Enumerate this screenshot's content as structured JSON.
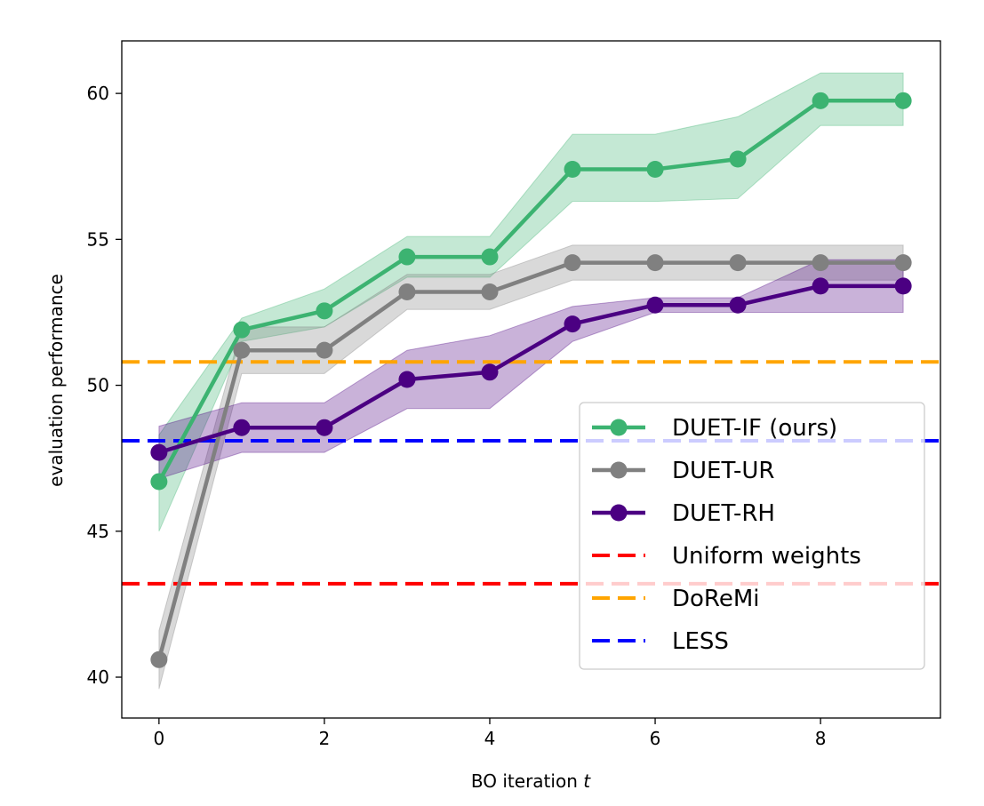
{
  "chart_data": {
    "type": "line",
    "title": "",
    "xlabel": "BO iteration",
    "xlabel_var": "t",
    "ylabel": "evaluation performance",
    "xlim": [
      -0.45,
      9.45
    ],
    "ylim": [
      38.6,
      61.8
    ],
    "xticks": [
      0,
      2,
      4,
      6,
      8
    ],
    "yticks": [
      40,
      45,
      50,
      55,
      60
    ],
    "grid": false,
    "legend_location": "lower-right",
    "x": [
      0,
      1,
      2,
      3,
      4,
      5,
      6,
      7,
      8,
      9
    ],
    "series": [
      {
        "name": "DUET-IF (ours)",
        "color": "#3cb371",
        "values": [
          46.7,
          51.9,
          52.55,
          54.4,
          54.4,
          57.4,
          57.4,
          57.75,
          59.75,
          59.75
        ],
        "band_low": [
          45.0,
          51.5,
          52.0,
          53.7,
          53.7,
          56.3,
          56.3,
          56.4,
          58.9,
          58.9
        ],
        "band_high": [
          48.3,
          52.3,
          53.3,
          55.1,
          55.1,
          58.6,
          58.6,
          59.2,
          60.7,
          60.7
        ]
      },
      {
        "name": "DUET-UR",
        "color": "#808080",
        "values": [
          40.6,
          51.2,
          51.2,
          53.2,
          53.2,
          54.2,
          54.2,
          54.2,
          54.2,
          54.2
        ],
        "band_low": [
          39.6,
          50.4,
          50.4,
          52.6,
          52.6,
          53.6,
          53.6,
          53.6,
          53.6,
          53.6
        ],
        "band_high": [
          41.6,
          52.0,
          52.0,
          53.8,
          53.8,
          54.8,
          54.8,
          54.8,
          54.8,
          54.8
        ]
      },
      {
        "name": "DUET-RH",
        "color": "#4b0082",
        "values": [
          47.7,
          48.55,
          48.55,
          50.2,
          50.45,
          52.1,
          52.75,
          52.75,
          53.4,
          53.4
        ],
        "band_low": [
          46.8,
          47.7,
          47.7,
          49.2,
          49.2,
          51.5,
          52.5,
          52.5,
          52.5,
          52.5
        ],
        "band_high": [
          48.6,
          49.4,
          49.4,
          51.2,
          51.7,
          52.7,
          53.0,
          53.0,
          54.3,
          54.3
        ]
      }
    ],
    "baselines": [
      {
        "name": "Uniform weights",
        "color": "#ff0000",
        "value": 43.2
      },
      {
        "name": "DoReMi",
        "color": "#ffa500",
        "value": 50.8
      },
      {
        "name": "LESS",
        "color": "#0000ff",
        "value": 48.1
      }
    ]
  }
}
